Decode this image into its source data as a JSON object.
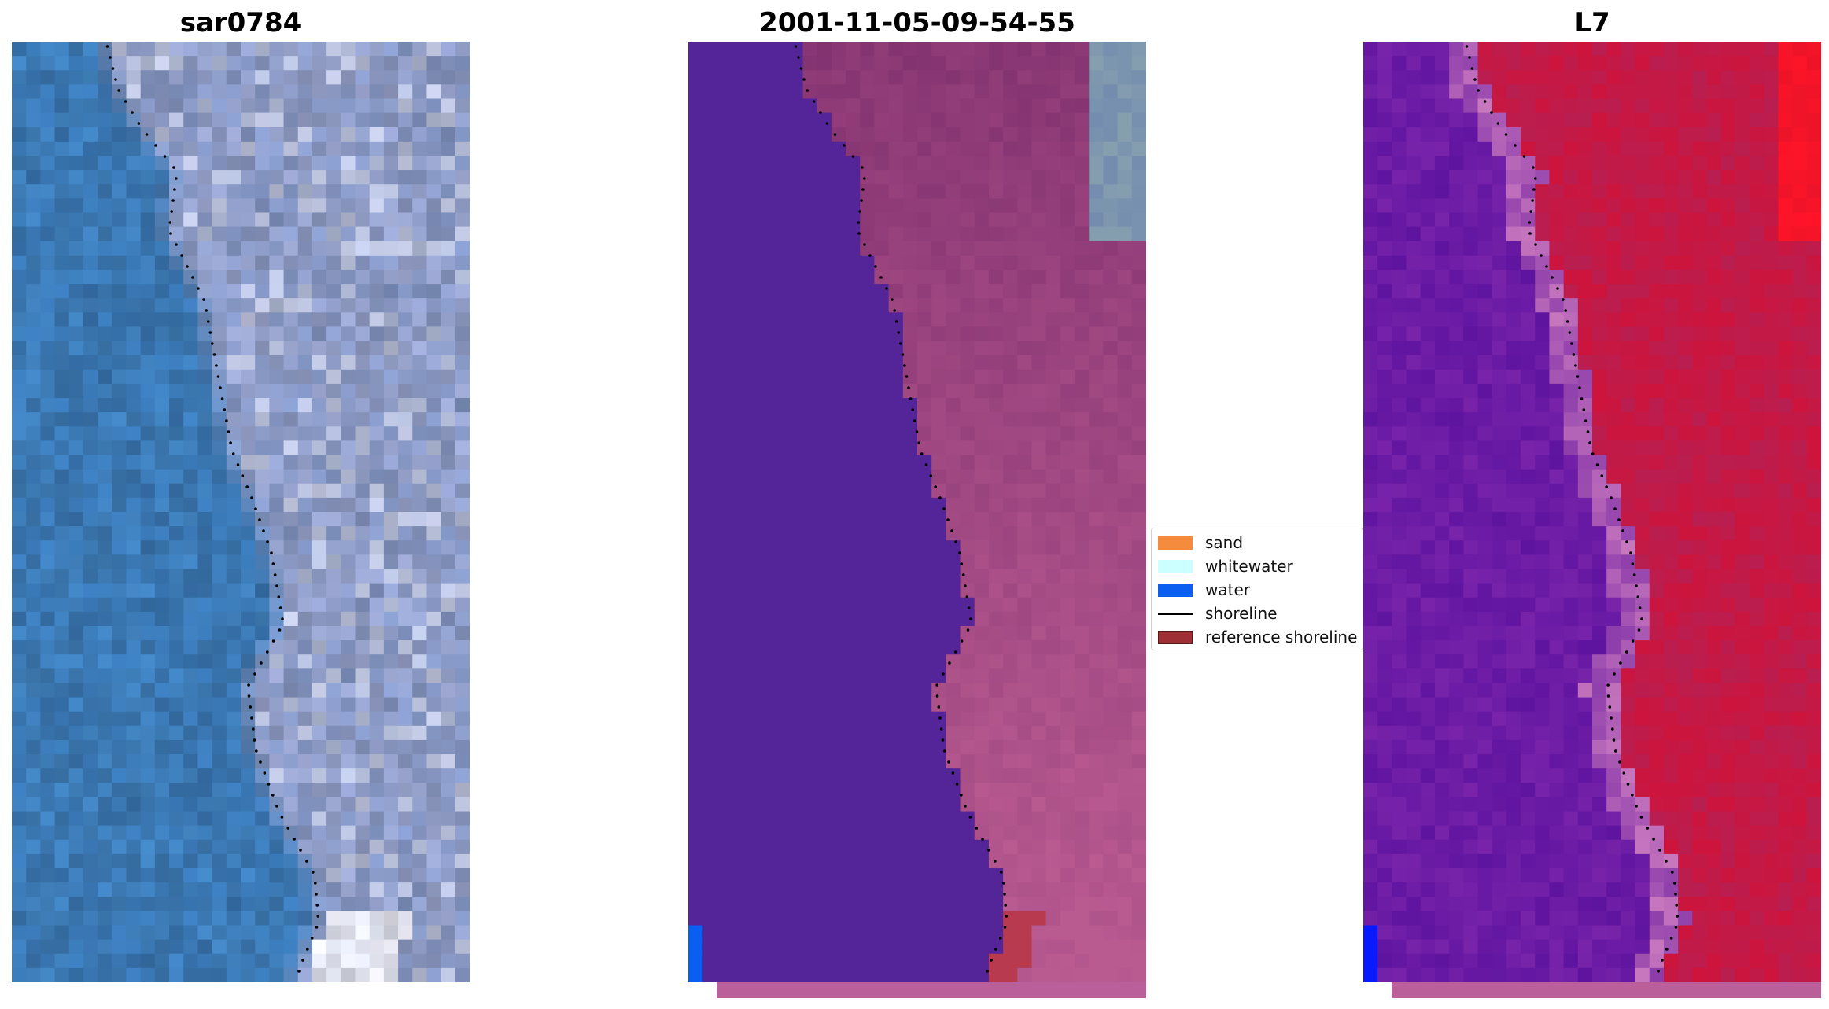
{
  "panels": [
    {
      "title": "sar0784",
      "kind": "rgb"
    },
    {
      "title": "2001-11-05-09-54-55",
      "kind": "classified"
    },
    {
      "title": "L7",
      "kind": "index"
    }
  ],
  "legend": {
    "items": [
      {
        "label": "sand",
        "color": "#f58b3d",
        "type": "patch"
      },
      {
        "label": "whitewater",
        "color": "#ccffff",
        "type": "patch"
      },
      {
        "label": "water",
        "color": "#0a5ff0",
        "type": "patch"
      },
      {
        "label": "shoreline",
        "color": "#000000",
        "type": "line"
      },
      {
        "label": "reference shoreline",
        "color": "#9e3035",
        "type": "patch"
      }
    ]
  },
  "colors": {
    "classified_water": "#532598",
    "classified_land": "#8a3a78",
    "classified_land_light": "#b0578f",
    "classified_blue_patch": "#0a5ff0",
    "classified_red_patch": "#b83a4e",
    "index_water": "#6a1aa0",
    "index_land": "#c41c48",
    "index_red_corner": "#ff1a1a",
    "index_blue_patch": "#0a1aff",
    "rgb_water": "#3a78b5",
    "rgb_land": "#9aa4c8",
    "rgb_bright": "#f4f4f8"
  }
}
